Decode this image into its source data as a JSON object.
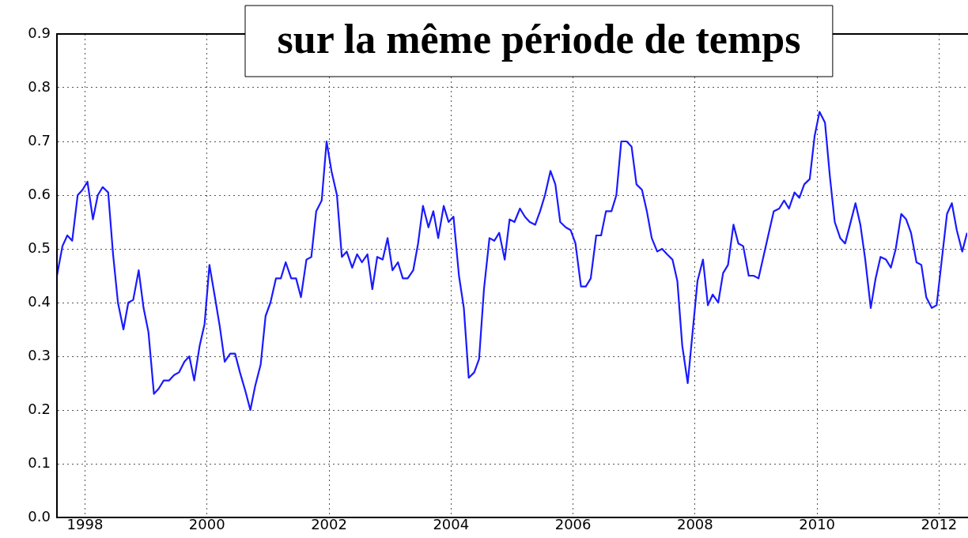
{
  "chart_data": {
    "type": "line",
    "title": "sur la même période de temps",
    "x": [
      1997.54,
      1997.63,
      1997.71,
      1997.79,
      1997.88,
      1997.96,
      1998.04,
      1998.13,
      1998.21,
      1998.29,
      1998.38,
      1998.46,
      1998.54,
      1998.63,
      1998.71,
      1998.79,
      1998.88,
      1998.96,
      1999.04,
      1999.13,
      1999.21,
      1999.29,
      1999.38,
      1999.46,
      1999.54,
      1999.63,
      1999.71,
      1999.79,
      1999.88,
      1999.96,
      2000.04,
      2000.13,
      2000.21,
      2000.29,
      2000.38,
      2000.46,
      2000.54,
      2000.63,
      2000.71,
      2000.79,
      2000.88,
      2000.96,
      2001.04,
      2001.13,
      2001.21,
      2001.29,
      2001.38,
      2001.46,
      2001.54,
      2001.63,
      2001.71,
      2001.79,
      2001.88,
      2001.96,
      2002.04,
      2002.13,
      2002.21,
      2002.29,
      2002.38,
      2002.46,
      2002.54,
      2002.63,
      2002.71,
      2002.79,
      2002.88,
      2002.96,
      2003.04,
      2003.13,
      2003.21,
      2003.29,
      2003.38,
      2003.46,
      2003.54,
      2003.63,
      2003.71,
      2003.79,
      2003.88,
      2003.96,
      2004.04,
      2004.13,
      2004.21,
      2004.29,
      2004.38,
      2004.46,
      2004.54,
      2004.63,
      2004.71,
      2004.79,
      2004.88,
      2004.96,
      2005.04,
      2005.13,
      2005.21,
      2005.29,
      2005.38,
      2005.46,
      2005.54,
      2005.63,
      2005.71,
      2005.79,
      2005.88,
      2005.96,
      2006.04,
      2006.13,
      2006.21,
      2006.29,
      2006.38,
      2006.46,
      2006.54,
      2006.63,
      2006.71,
      2006.79,
      2006.88,
      2006.96,
      2007.04,
      2007.13,
      2007.21,
      2007.29,
      2007.38,
      2007.46,
      2007.54,
      2007.63,
      2007.71,
      2007.79,
      2007.88,
      2007.96,
      2008.04,
      2008.13,
      2008.21,
      2008.29,
      2008.38,
      2008.46,
      2008.54,
      2008.63,
      2008.71,
      2008.79,
      2008.88,
      2008.96,
      2009.04,
      2009.13,
      2009.21,
      2009.29,
      2009.38,
      2009.46,
      2009.54,
      2009.63,
      2009.71,
      2009.79,
      2009.88,
      2009.96,
      2010.04,
      2010.13,
      2010.21,
      2010.29,
      2010.38,
      2010.46,
      2010.54,
      2010.63,
      2010.71,
      2010.79,
      2010.88,
      2010.96,
      2011.04,
      2011.13,
      2011.21,
      2011.29,
      2011.38,
      2011.46,
      2011.54,
      2011.63,
      2011.71,
      2011.79,
      2011.88,
      2011.96,
      2012.04,
      2012.13,
      2012.21,
      2012.29,
      2012.38,
      2012.46
    ],
    "series": [
      {
        "color": "#1a1aff",
        "values": [
          0.45,
          0.505,
          0.525,
          0.515,
          0.6,
          0.61,
          0.625,
          0.555,
          0.6,
          0.615,
          0.605,
          0.49,
          0.4,
          0.35,
          0.4,
          0.405,
          0.46,
          0.39,
          0.345,
          0.23,
          0.24,
          0.255,
          0.255,
          0.265,
          0.27,
          0.29,
          0.3,
          0.255,
          0.32,
          0.36,
          0.47,
          0.41,
          0.355,
          0.29,
          0.305,
          0.305,
          0.27,
          0.235,
          0.2,
          0.245,
          0.285,
          0.375,
          0.4,
          0.445,
          0.445,
          0.475,
          0.445,
          0.445,
          0.41,
          0.48,
          0.485,
          0.57,
          0.59,
          0.7,
          0.645,
          0.6,
          0.485,
          0.495,
          0.465,
          0.49,
          0.475,
          0.49,
          0.425,
          0.485,
          0.48,
          0.52,
          0.46,
          0.475,
          0.445,
          0.445,
          0.46,
          0.51,
          0.58,
          0.54,
          0.57,
          0.52,
          0.58,
          0.55,
          0.56,
          0.45,
          0.39,
          0.26,
          0.27,
          0.295,
          0.425,
          0.52,
          0.515,
          0.53,
          0.48,
          0.555,
          0.55,
          0.575,
          0.56,
          0.55,
          0.545,
          0.57,
          0.6,
          0.645,
          0.62,
          0.55,
          0.54,
          0.535,
          0.51,
          0.43,
          0.43,
          0.445,
          0.525,
          0.525,
          0.57,
          0.57,
          0.6,
          0.7,
          0.7,
          0.69,
          0.62,
          0.61,
          0.57,
          0.52,
          0.495,
          0.5,
          0.49,
          0.48,
          0.44,
          0.32,
          0.25,
          0.345,
          0.44,
          0.48,
          0.395,
          0.415,
          0.4,
          0.455,
          0.47,
          0.545,
          0.51,
          0.505,
          0.45,
          0.45,
          0.445,
          0.49,
          0.53,
          0.57,
          0.575,
          0.59,
          0.575,
          0.605,
          0.595,
          0.62,
          0.63,
          0.71,
          0.755,
          0.735,
          0.635,
          0.55,
          0.52,
          0.51,
          0.545,
          0.585,
          0.545,
          0.48,
          0.39,
          0.445,
          0.485,
          0.48,
          0.465,
          0.5,
          0.565,
          0.555,
          0.53,
          0.475,
          0.47,
          0.41,
          0.39,
          0.395,
          0.475,
          0.565,
          0.585,
          0.535,
          0.495,
          0.53
        ]
      }
    ],
    "xlim": [
      1997.54,
      2012.46
    ],
    "xticks": [
      1998,
      2000,
      2002,
      2004,
      2006,
      2008,
      2010,
      2012
    ],
    "ylim": [
      0,
      0.9
    ],
    "yticks": [
      {
        "value": 0,
        "label": "0.0"
      },
      0.1,
      0.2,
      0.3,
      0.4,
      0.5,
      0.6,
      0.7,
      0.8,
      0.9
    ],
    "grid": true,
    "legend": false,
    "marker": "none",
    "line_style": "solid"
  }
}
